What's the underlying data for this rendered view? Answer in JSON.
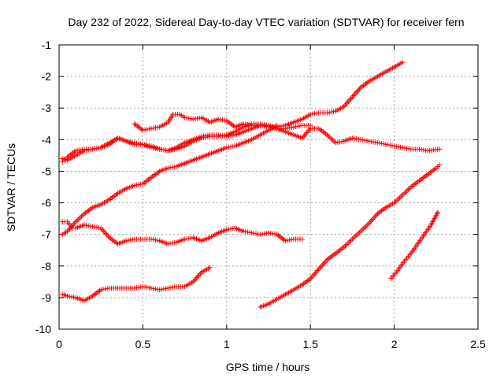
{
  "chart_data": {
    "type": "scatter",
    "title": "Day 232 of 2022, Sidereal Day-to-day VTEC variation (SDTVAR) for receiver fern",
    "xlabel": "GPS time / hours",
    "ylabel": "SDTVAR / TECUs",
    "xlim": [
      0,
      2.5
    ],
    "ylim": [
      -10,
      -1
    ],
    "xticks": [
      0,
      0.5,
      1,
      1.5,
      2,
      2.5
    ],
    "xtick_labels": [
      "0",
      "0.5",
      "1",
      "1.5",
      "2",
      "2.5"
    ],
    "yticks": [
      -10,
      -9,
      -8,
      -7,
      -6,
      -5,
      -4,
      -3,
      -2,
      -1
    ],
    "ytick_labels": [
      "-10",
      "-9",
      "-8",
      "-7",
      "-6",
      "-5",
      "-4",
      "-3",
      "-2",
      "-1"
    ],
    "grid": true,
    "marker": "+",
    "color": "#ff0000",
    "series": [
      {
        "x": [
          0.02,
          0.05,
          0.1,
          0.15,
          0.2,
          0.25,
          0.3,
          0.35,
          0.38,
          0.42,
          0.45,
          0.5,
          0.55,
          0.6,
          0.65,
          0.7,
          0.75,
          0.8,
          0.85,
          0.9,
          0.95,
          1.0,
          1.05,
          1.1,
          1.15,
          1.2,
          1.25,
          1.3,
          1.35,
          1.4,
          1.45,
          1.5,
          1.55,
          1.6,
          1.65,
          1.7,
          1.75,
          1.8,
          1.85,
          1.9,
          1.95,
          2.0,
          2.05,
          2.1,
          2.15,
          2.2,
          2.27
        ],
        "y": [
          -4.7,
          -4.55,
          -4.35,
          -4.3,
          -4.3,
          -4.25,
          -4.1,
          -3.95,
          -4.0,
          -4.1,
          -4.15,
          -4.15,
          -4.2,
          -4.3,
          -4.35,
          -4.3,
          -4.2,
          -4.05,
          -3.95,
          -3.9,
          -3.9,
          -3.85,
          -3.75,
          -3.6,
          -3.5,
          -3.5,
          -3.55,
          -3.65,
          -3.75,
          -3.85,
          -3.95,
          -3.65,
          -3.65,
          -3.85,
          -4.1,
          -4.05,
          -3.95,
          -4.0,
          -4.05,
          -4.1,
          -4.15,
          -4.2,
          -4.25,
          -4.3,
          -4.3,
          -4.35,
          -4.3
        ]
      },
      {
        "x": [
          0.02,
          0.05,
          0.1,
          0.15,
          0.2,
          0.25,
          0.3,
          0.35,
          0.4,
          0.45,
          0.5,
          0.55,
          0.6,
          0.65,
          0.7,
          0.75,
          0.8,
          0.85,
          0.9,
          0.95,
          1.0,
          1.05,
          1.1,
          1.15,
          1.2,
          1.25,
          1.3,
          1.35,
          1.4,
          1.45,
          1.5,
          1.55,
          1.6,
          1.65,
          1.7,
          1.75,
          1.8,
          1.85,
          1.9,
          1.95,
          2.0,
          2.05
        ],
        "y": [
          -4.6,
          -4.65,
          -4.5,
          -4.35,
          -4.3,
          -4.25,
          -4.15,
          -3.95,
          -4.05,
          -4.1,
          -4.15,
          -4.25,
          -4.3,
          -4.35,
          -4.25,
          -4.1,
          -4.0,
          -3.9,
          -3.85,
          -3.85,
          -3.9,
          -3.85,
          -3.75,
          -3.65,
          -3.55,
          -3.55,
          -3.6,
          -3.55,
          -3.45,
          -3.35,
          -3.2,
          -3.15,
          -3.15,
          -3.1,
          -2.95,
          -2.65,
          -2.35,
          -2.15,
          -2.0,
          -1.85,
          -1.7,
          -1.55
        ]
      },
      {
        "x": [
          0.45,
          0.5,
          0.55,
          0.6,
          0.65,
          0.68,
          0.72,
          0.75,
          0.8,
          0.85,
          0.9,
          0.95,
          1.0,
          1.05,
          1.1,
          1.15,
          1.2,
          1.25,
          1.3,
          1.35,
          1.4,
          1.45,
          1.5
        ],
        "y": [
          -3.5,
          -3.7,
          -3.65,
          -3.6,
          -3.45,
          -3.2,
          -3.2,
          -3.3,
          -3.35,
          -3.3,
          -3.45,
          -3.35,
          -3.4,
          -3.6,
          -3.5,
          -3.55,
          -3.55,
          -3.6,
          -3.65,
          -3.65,
          -3.6,
          -3.55,
          -3.55
        ]
      },
      {
        "x": [
          0.02,
          0.05,
          0.1,
          0.15,
          0.2,
          0.25,
          0.3,
          0.35,
          0.4,
          0.45,
          0.5,
          0.55,
          0.6,
          0.65,
          0.7,
          0.75,
          0.8,
          0.85,
          0.9,
          0.95,
          1.0,
          1.05,
          1.1,
          1.15,
          1.2,
          1.25,
          1.3
        ],
        "y": [
          -7.0,
          -6.9,
          -6.6,
          -6.35,
          -6.15,
          -6.05,
          -5.9,
          -5.7,
          -5.55,
          -5.45,
          -5.4,
          -5.2,
          -5.0,
          -4.9,
          -4.85,
          -4.75,
          -4.65,
          -4.55,
          -4.45,
          -4.35,
          -4.25,
          -4.2,
          -4.1,
          -4.0,
          -3.85,
          -3.7,
          -3.55
        ]
      },
      {
        "x": [
          0.02,
          0.05,
          0.08,
          0.1,
          0.15,
          0.2,
          0.25,
          0.3,
          0.35,
          0.4,
          0.45,
          0.5,
          0.55,
          0.6,
          0.65,
          0.7,
          0.75,
          0.8,
          0.85,
          0.9,
          0.95,
          1.0,
          1.05,
          1.1,
          1.15,
          1.2,
          1.25,
          1.3,
          1.35,
          1.4,
          1.45
        ],
        "y": [
          -6.6,
          -6.6,
          -6.8,
          -6.8,
          -6.7,
          -6.75,
          -6.8,
          -7.1,
          -7.3,
          -7.2,
          -7.15,
          -7.15,
          -7.15,
          -7.2,
          -7.3,
          -7.25,
          -7.15,
          -7.1,
          -7.2,
          -7.1,
          -6.95,
          -6.85,
          -6.8,
          -6.9,
          -6.95,
          -7.0,
          -6.95,
          -7.0,
          -7.2,
          -7.15,
          -7.15
        ]
      },
      {
        "x": [
          0.02,
          0.05,
          0.1,
          0.15,
          0.2,
          0.25,
          0.3,
          0.35,
          0.4,
          0.45,
          0.5,
          0.55,
          0.6,
          0.65,
          0.7,
          0.75,
          0.8,
          0.85,
          0.9
        ],
        "y": [
          -8.9,
          -8.95,
          -9.0,
          -9.1,
          -8.95,
          -8.75,
          -8.7,
          -8.7,
          -8.7,
          -8.7,
          -8.65,
          -8.7,
          -8.75,
          -8.7,
          -8.65,
          -8.65,
          -8.5,
          -8.2,
          -8.05
        ]
      },
      {
        "x": [
          1.2,
          1.25,
          1.3,
          1.35,
          1.4,
          1.45,
          1.5,
          1.55,
          1.6,
          1.65,
          1.7,
          1.75,
          1.8,
          1.85,
          1.9,
          1.95,
          2.0,
          2.05,
          2.1,
          2.15,
          2.2,
          2.25,
          2.27
        ],
        "y": [
          -9.3,
          -9.2,
          -9.05,
          -8.9,
          -8.75,
          -8.6,
          -8.4,
          -8.1,
          -7.8,
          -7.6,
          -7.4,
          -7.15,
          -6.9,
          -6.65,
          -6.35,
          -6.15,
          -6.0,
          -5.75,
          -5.5,
          -5.3,
          -5.1,
          -4.9,
          -4.8
        ]
      },
      {
        "x": [
          1.98,
          2.02,
          2.06,
          2.1,
          2.14,
          2.18,
          2.22,
          2.26
        ],
        "y": [
          -8.4,
          -8.15,
          -7.85,
          -7.6,
          -7.3,
          -7.0,
          -6.7,
          -6.3
        ]
      }
    ]
  }
}
